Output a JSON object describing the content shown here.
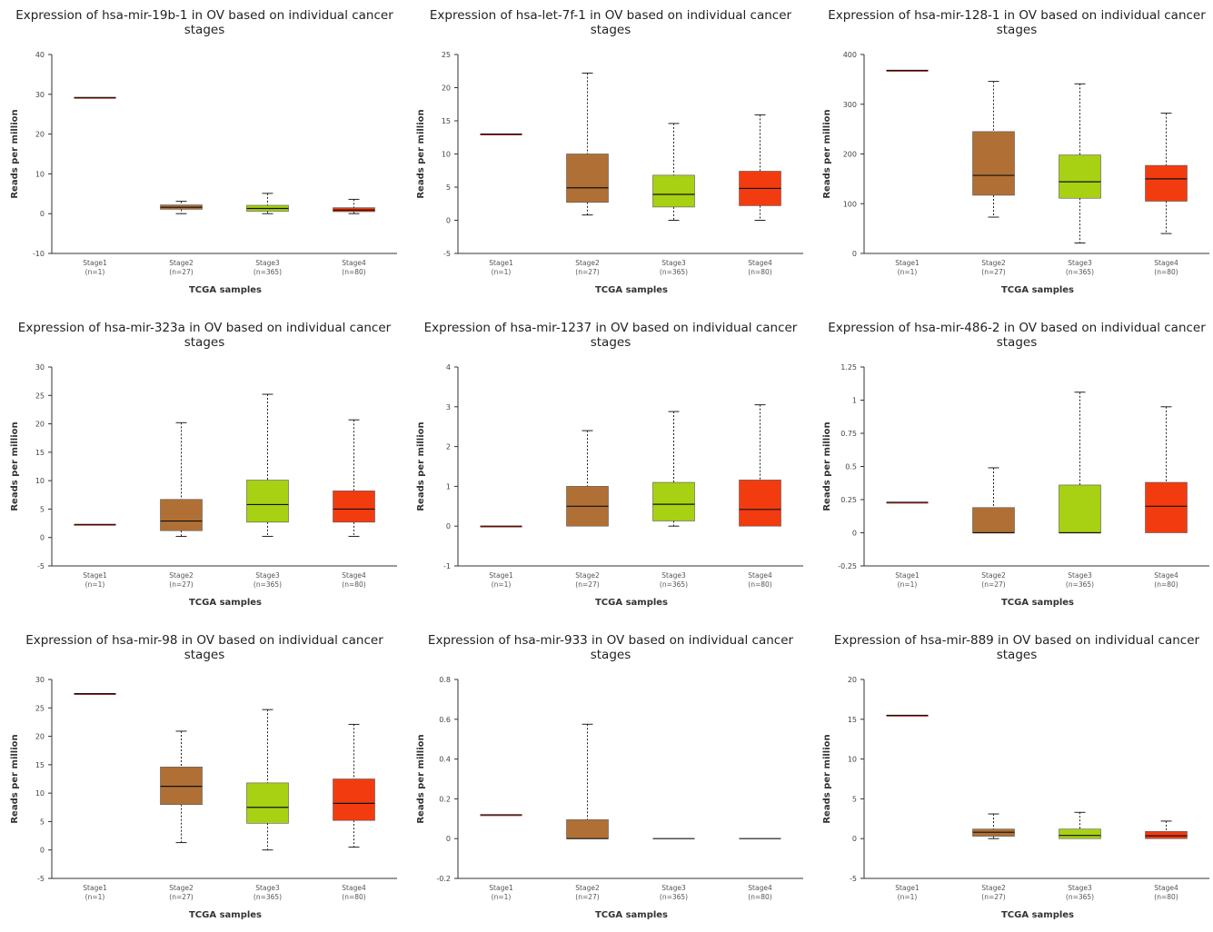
{
  "colors": {
    "stage1": "#c0392b",
    "stage2": "#b07035",
    "stage3": "#a8d113",
    "stage4": "#f23c10"
  },
  "charts": [
    {
      "title": "Expression of hsa-mir-19b-1 in OV based on individual cancer stages",
      "chart_data": {
        "type": "box",
        "ylabel": "Reads per million",
        "xlabel": "TCGA samples",
        "ylim": [
          -10,
          40
        ],
        "yticks": [
          "-10",
          "0",
          "10",
          "20",
          "30",
          "40"
        ],
        "categories": [
          {
            "name": "Stage1",
            "n": "(n=1)"
          },
          {
            "name": "Stage2",
            "n": "(n=27)"
          },
          {
            "name": "Stage3",
            "n": "(n=365)"
          },
          {
            "name": "Stage4",
            "n": "(n=80)"
          }
        ],
        "boxes": [
          {
            "min": 29.2,
            "q1": 29.2,
            "median": 29.2,
            "q3": 29.2,
            "max": 29.2
          },
          {
            "min": 0,
            "q1": 1.1,
            "median": 1.6,
            "q3": 2.2,
            "max": 3.1
          },
          {
            "min": 0,
            "q1": 0.6,
            "median": 1.3,
            "q3": 2.1,
            "max": 5.1
          },
          {
            "min": 0,
            "q1": 0.5,
            "median": 0.9,
            "q3": 1.5,
            "max": 3.6
          }
        ]
      }
    },
    {
      "title": "Expression of hsa-let-7f-1 in OV based on individual cancer stages",
      "chart_data": {
        "type": "box",
        "ylabel": "Reads per million",
        "xlabel": "TCGA samples",
        "ylim": [
          -5,
          25
        ],
        "yticks": [
          "-5",
          "0",
          "5",
          "10",
          "15",
          "20",
          "25"
        ],
        "categories": [
          {
            "name": "Stage1",
            "n": "(n=1)"
          },
          {
            "name": "Stage2",
            "n": "(n=27)"
          },
          {
            "name": "Stage3",
            "n": "(n=365)"
          },
          {
            "name": "Stage4",
            "n": "(n=80)"
          }
        ],
        "boxes": [
          {
            "min": 13,
            "q1": 13,
            "median": 13,
            "q3": 13,
            "max": 13
          },
          {
            "min": 0.8,
            "q1": 2.7,
            "median": 4.9,
            "q3": 10,
            "max": 22.2
          },
          {
            "min": 0,
            "q1": 2,
            "median": 3.9,
            "q3": 6.8,
            "max": 14.6
          },
          {
            "min": 0,
            "q1": 2.2,
            "median": 4.8,
            "q3": 7.4,
            "max": 15.9
          }
        ]
      }
    },
    {
      "title": "Expression of hsa-mir-128-1 in OV based on individual cancer stages",
      "chart_data": {
        "type": "box",
        "ylabel": "Reads per million",
        "xlabel": "TCGA samples",
        "ylim": [
          0,
          400
        ],
        "yticks": [
          "0",
          "100",
          "200",
          "300",
          "400"
        ],
        "categories": [
          {
            "name": "Stage1",
            "n": "(n=1)"
          },
          {
            "name": "Stage2",
            "n": "(n=27)"
          },
          {
            "name": "Stage3",
            "n": "(n=365)"
          },
          {
            "name": "Stage4",
            "n": "(n=80)"
          }
        ],
        "boxes": [
          {
            "min": 368,
            "q1": 368,
            "median": 368,
            "q3": 368,
            "max": 368
          },
          {
            "min": 73,
            "q1": 117,
            "median": 157,
            "q3": 245,
            "max": 346
          },
          {
            "min": 21,
            "q1": 111,
            "median": 144,
            "q3": 198,
            "max": 341
          },
          {
            "min": 40,
            "q1": 105,
            "median": 150,
            "q3": 177,
            "max": 282
          }
        ]
      }
    },
    {
      "title": "Expression of hsa-mir-323a in OV based on individual cancer stages",
      "chart_data": {
        "type": "box",
        "ylabel": "Reads per million",
        "xlabel": "TCGA samples",
        "ylim": [
          -5,
          30
        ],
        "yticks": [
          "-5",
          "0",
          "5",
          "10",
          "15",
          "20",
          "25",
          "30"
        ],
        "categories": [
          {
            "name": "Stage1",
            "n": "(n=1)"
          },
          {
            "name": "Stage2",
            "n": "(n=27)"
          },
          {
            "name": "Stage3",
            "n": "(n=365)"
          },
          {
            "name": "Stage4",
            "n": "(n=80)"
          }
        ],
        "boxes": [
          {
            "min": 2.3,
            "q1": 2.3,
            "median": 2.3,
            "q3": 2.3,
            "max": 2.3
          },
          {
            "min": 0.2,
            "q1": 1.2,
            "median": 2.9,
            "q3": 6.7,
            "max": 20.2
          },
          {
            "min": 0.2,
            "q1": 2.7,
            "median": 5.8,
            "q3": 10.1,
            "max": 25.2
          },
          {
            "min": 0.2,
            "q1": 2.7,
            "median": 5,
            "q3": 8.2,
            "max": 20.7
          }
        ]
      }
    },
    {
      "title": "Expression of hsa-mir-1237 in OV based on individual cancer stages",
      "chart_data": {
        "type": "box",
        "ylabel": "Reads per million",
        "xlabel": "TCGA samples",
        "ylim": [
          -1,
          4
        ],
        "yticks": [
          "-1",
          "0",
          "1",
          "2",
          "3",
          "4"
        ],
        "categories": [
          {
            "name": "Stage1",
            "n": "(n=1)"
          },
          {
            "name": "Stage2",
            "n": "(n=27)"
          },
          {
            "name": "Stage3",
            "n": "(n=365)"
          },
          {
            "name": "Stage4",
            "n": "(n=80)"
          }
        ],
        "boxes": [
          {
            "min": 0,
            "q1": 0,
            "median": 0,
            "q3": 0,
            "max": 0
          },
          {
            "min": 0,
            "q1": 0,
            "median": 0.5,
            "q3": 1,
            "max": 2.4
          },
          {
            "min": 0,
            "q1": 0.13,
            "median": 0.55,
            "q3": 1.1,
            "max": 2.88
          },
          {
            "min": 0,
            "q1": 0,
            "median": 0.42,
            "q3": 1.16,
            "max": 3.05
          }
        ]
      }
    },
    {
      "title": "Expression of hsa-mir-486-2 in OV based on individual cancer stages",
      "chart_data": {
        "type": "box",
        "ylabel": "Reads per million",
        "xlabel": "TCGA samples",
        "ylim": [
          -0.25,
          1.25
        ],
        "yticks": [
          "-0.25",
          "0",
          "0.25",
          "0.5",
          "0.75",
          "1",
          "1.25"
        ],
        "categories": [
          {
            "name": "Stage1",
            "n": "(n=1)"
          },
          {
            "name": "Stage2",
            "n": "(n=27)"
          },
          {
            "name": "Stage3",
            "n": "(n=365)"
          },
          {
            "name": "Stage4",
            "n": "(n=80)"
          }
        ],
        "boxes": [
          {
            "min": 0.23,
            "q1": 0.23,
            "median": 0.23,
            "q3": 0.23,
            "max": 0.23
          },
          {
            "min": 0,
            "q1": 0,
            "median": 0,
            "q3": 0.19,
            "max": 0.49
          },
          {
            "min": 0,
            "q1": 0,
            "median": 0,
            "q3": 0.36,
            "max": 1.06
          },
          {
            "min": 0,
            "q1": 0,
            "median": 0.2,
            "q3": 0.38,
            "max": 0.95
          }
        ]
      }
    },
    {
      "title": "Expression of hsa-mir-98 in OV based on individual cancer stages",
      "chart_data": {
        "type": "box",
        "ylabel": "Reads per million",
        "xlabel": "TCGA samples",
        "ylim": [
          -5,
          30
        ],
        "yticks": [
          "-5",
          "0",
          "5",
          "10",
          "15",
          "20",
          "25",
          "30"
        ],
        "categories": [
          {
            "name": "Stage1",
            "n": "(n=1)"
          },
          {
            "name": "Stage2",
            "n": "(n=27)"
          },
          {
            "name": "Stage3",
            "n": "(n=365)"
          },
          {
            "name": "Stage4",
            "n": "(n=80)"
          }
        ],
        "boxes": [
          {
            "min": 27.5,
            "q1": 27.5,
            "median": 27.5,
            "q3": 27.5,
            "max": 27.5
          },
          {
            "min": 1.3,
            "q1": 8,
            "median": 11.2,
            "q3": 14.6,
            "max": 20.9
          },
          {
            "min": 0,
            "q1": 4.7,
            "median": 7.5,
            "q3": 11.8,
            "max": 24.7
          },
          {
            "min": 0.5,
            "q1": 5.2,
            "median": 8.2,
            "q3": 12.5,
            "max": 22.1
          }
        ]
      }
    },
    {
      "title": "Expression of hsa-mir-933 in OV based on individual cancer stages",
      "chart_data": {
        "type": "box",
        "ylabel": "Reads per million",
        "xlabel": "TCGA samples",
        "ylim": [
          -0.2,
          0.8
        ],
        "yticks": [
          "-0.2",
          "0",
          "0.2",
          "0.4",
          "0.6",
          "0.8"
        ],
        "categories": [
          {
            "name": "Stage1",
            "n": "(n=1)"
          },
          {
            "name": "Stage2",
            "n": "(n=27)"
          },
          {
            "name": "Stage3",
            "n": "(n=365)"
          },
          {
            "name": "Stage4",
            "n": "(n=80)"
          }
        ],
        "boxes": [
          {
            "min": 0.12,
            "q1": 0.12,
            "median": 0.12,
            "q3": 0.12,
            "max": 0.12
          },
          {
            "min": 0,
            "q1": 0,
            "median": 0,
            "q3": 0.095,
            "max": 0.575
          },
          {
            "min": 0,
            "q1": 0,
            "median": 0,
            "q3": 0,
            "max": 0
          },
          {
            "min": 0,
            "q1": 0,
            "median": 0,
            "q3": 0,
            "max": 0
          }
        ]
      }
    },
    {
      "title": "Expression of hsa-mir-889 in OV based on individual cancer stages",
      "chart_data": {
        "type": "box",
        "ylabel": "Reads per million",
        "xlabel": "TCGA samples",
        "ylim": [
          -5,
          20
        ],
        "yticks": [
          "-5",
          "0",
          "5",
          "10",
          "15",
          "20"
        ],
        "categories": [
          {
            "name": "Stage1",
            "n": "(n=1)"
          },
          {
            "name": "Stage2",
            "n": "(n=27)"
          },
          {
            "name": "Stage3",
            "n": "(n=365)"
          },
          {
            "name": "Stage4",
            "n": "(n=80)"
          }
        ],
        "boxes": [
          {
            "min": 15.5,
            "q1": 15.5,
            "median": 15.5,
            "q3": 15.5,
            "max": 15.5
          },
          {
            "min": 0,
            "q1": 0.3,
            "median": 0.8,
            "q3": 1.2,
            "max": 3.1
          },
          {
            "min": 0,
            "q1": 0,
            "median": 0.4,
            "q3": 1.2,
            "max": 3.3
          },
          {
            "min": 0,
            "q1": 0,
            "median": 0.35,
            "q3": 0.9,
            "max": 2.2
          }
        ]
      }
    }
  ]
}
